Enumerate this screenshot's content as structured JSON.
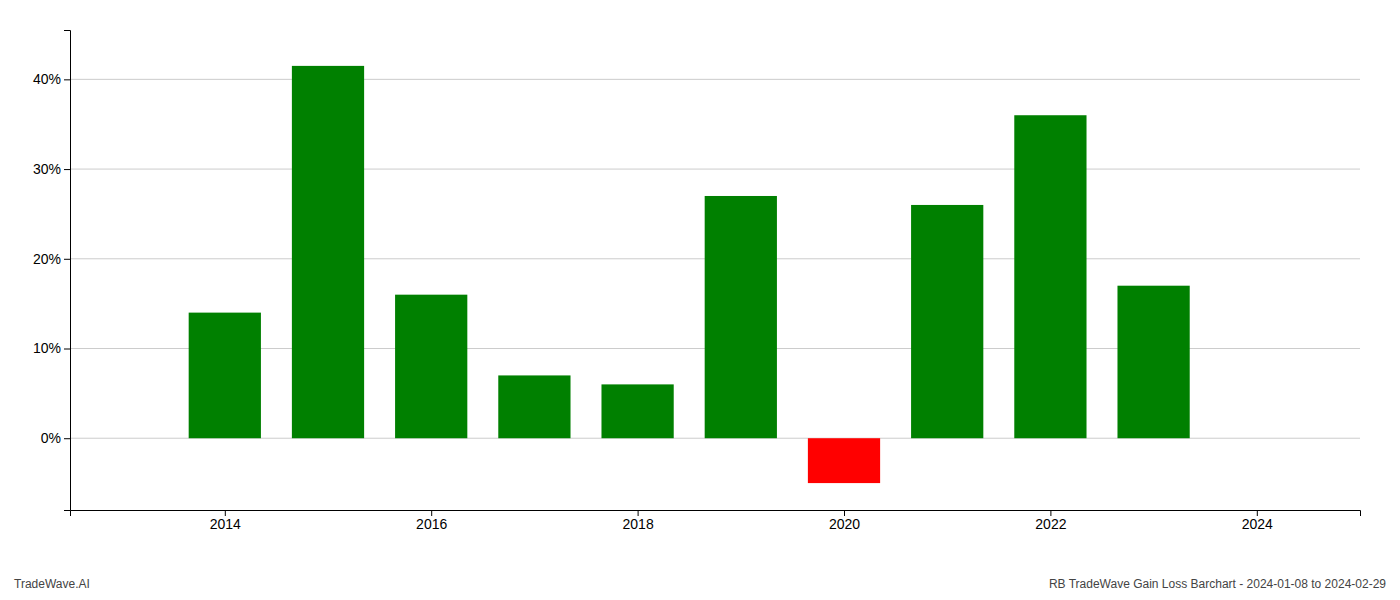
{
  "chart_data": {
    "type": "bar",
    "x": [
      2014,
      2015,
      2016,
      2017,
      2018,
      2019,
      2020,
      2021,
      2022,
      2023
    ],
    "values": [
      0.14,
      0.415,
      0.16,
      0.07,
      0.06,
      0.27,
      -0.05,
      0.26,
      0.36,
      0.17
    ],
    "colors": [
      "#008000",
      "#008000",
      "#008000",
      "#008000",
      "#008000",
      "#008000",
      "#ff0000",
      "#008000",
      "#008000",
      "#008000"
    ],
    "xlim": [
      2012.5,
      2025.0
    ],
    "xticks": [
      2014,
      2016,
      2018,
      2020,
      2022,
      2024
    ],
    "ylim": [
      -0.08,
      0.455
    ],
    "yticks": [
      {
        "value": 0.0,
        "label": "0%"
      },
      {
        "value": 0.1,
        "label": "10%"
      },
      {
        "value": 0.2,
        "label": "20%"
      },
      {
        "value": 0.3,
        "label": "30%"
      },
      {
        "value": 0.4,
        "label": "40%"
      }
    ],
    "grid": true,
    "annotations": [
      "TradeWave.AI",
      "RB TradeWave Gain Loss Barchart - 2024-01-08 to 2024-02-29"
    ]
  }
}
